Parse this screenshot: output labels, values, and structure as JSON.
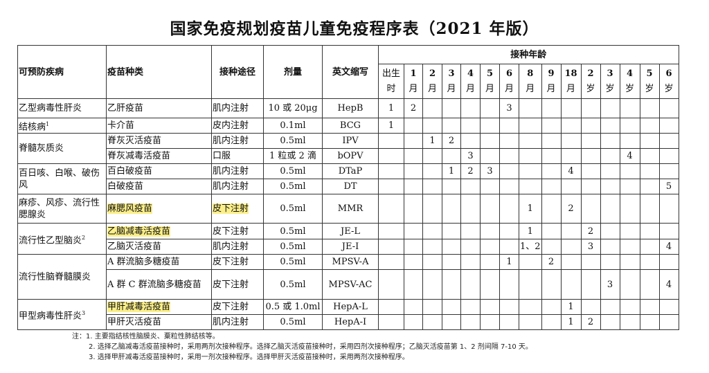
{
  "title": "国家免疫规划疫苗儿童免疫程序表（2021 年版）",
  "headers": {
    "disease": "可预防疾病",
    "vaccine": "疫苗种类",
    "route": "接种途径",
    "dose": "剂量",
    "abbr": "英文缩写",
    "age_group": "接种年龄"
  },
  "ages": [
    [
      "出生",
      "时"
    ],
    [
      "1",
      "月"
    ],
    [
      "2",
      "月"
    ],
    [
      "3",
      "月"
    ],
    [
      "4",
      "月"
    ],
    [
      "5",
      "月"
    ],
    [
      "6",
      "月"
    ],
    [
      "8",
      "月"
    ],
    [
      "9",
      "月"
    ],
    [
      "18",
      "月"
    ],
    [
      "2",
      "岁"
    ],
    [
      "3",
      "岁"
    ],
    [
      "4",
      "岁"
    ],
    [
      "5",
      "岁"
    ],
    [
      "6",
      "岁"
    ]
  ],
  "diseases": [
    {
      "name": "乙型病毒性肝炎",
      "sup": "",
      "rows": [
        {
          "vaccine": "乙肝疫苗",
          "route": "肌内注射",
          "dose": "10 或 20μg",
          "abbr": "HepB",
          "doses": {
            "0": "1",
            "1": "2",
            "6": "3"
          }
        }
      ]
    },
    {
      "name": "结核病",
      "sup": "1",
      "rows": [
        {
          "vaccine": "卡介苗",
          "route": "皮内注射",
          "dose": "0.1ml",
          "abbr": "BCG",
          "doses": {
            "0": "1"
          }
        }
      ]
    },
    {
      "name": "脊髓灰质炎",
      "sup": "",
      "rows": [
        {
          "vaccine": "脊灰灭活疫苗",
          "route": "肌内注射",
          "dose": "0.5ml",
          "abbr": "IPV",
          "doses": {
            "2": "1",
            "3": "2"
          }
        },
        {
          "vaccine": "脊灰减毒活疫苗",
          "route": "口服",
          "dose": "1 粒或 2 滴",
          "abbr": "bOPV",
          "doses": {
            "4": "3",
            "12": "4"
          }
        }
      ]
    },
    {
      "name": "百日咳、白喉、破伤风",
      "sup": "",
      "rows": [
        {
          "vaccine": "百白破疫苗",
          "route": "肌内注射",
          "dose": "0.5ml",
          "abbr": "DTaP",
          "doses": {
            "3": "1",
            "4": "2",
            "5": "3",
            "9": "4"
          }
        },
        {
          "vaccine": "白破疫苗",
          "route": "肌内注射",
          "dose": "0.5ml",
          "abbr": "DT",
          "doses": {
            "14": "5"
          }
        }
      ]
    },
    {
      "name": "麻疹、风疹、流行性腮腺炎",
      "sup": "",
      "rows": [
        {
          "vaccine": "麻腮风疫苗",
          "route": "皮下注射",
          "dose": "0.5ml",
          "abbr": "MMR",
          "hl_vaccine": true,
          "hl_route": true,
          "doses": {
            "7": "1",
            "9": "2"
          }
        }
      ]
    },
    {
      "name": "流行性乙型脑炎",
      "sup": "2",
      "rows": [
        {
          "vaccine": "乙脑减毒活疫苗",
          "route": "皮下注射",
          "dose": "0.5ml",
          "abbr": "JE-L",
          "hl_vaccine": true,
          "doses": {
            "7": "1",
            "10": "2"
          }
        },
        {
          "vaccine": "乙脑灭活疫苗",
          "route": "肌内注射",
          "dose": "0.5ml",
          "abbr": "JE-I",
          "doses": {
            "7": "1、2",
            "10": "3",
            "14": "4"
          }
        }
      ]
    },
    {
      "name": "流行性脑脊髓膜炎",
      "sup": "",
      "rows": [
        {
          "vaccine": "A 群流脑多糖疫苗",
          "route": "皮下注射",
          "dose": "0.5ml",
          "abbr": "MPSV-A",
          "doses": {
            "6": "1",
            "8": "2"
          }
        },
        {
          "vaccine": "A 群 C 群流脑多糖疫苗",
          "route": "皮下注射",
          "dose": "0.5ml",
          "abbr": "MPSV-AC",
          "doses": {
            "11": "3",
            "14": "4"
          }
        }
      ]
    },
    {
      "name": "甲型病毒性肝炎",
      "sup": "3",
      "rows": [
        {
          "vaccine": "甲肝减毒活疫苗",
          "route": "皮下注射",
          "dose": "0.5 或 1.0ml",
          "abbr": "HepA-L",
          "hl_vaccine": true,
          "doses": {
            "9": "1"
          }
        },
        {
          "vaccine": "甲肝灭活疫苗",
          "route": "肌内注射",
          "dose": "0.5ml",
          "abbr": "HepA-I",
          "doses": {
            "9": "1",
            "10": "2"
          }
        }
      ]
    }
  ],
  "notes": {
    "prefix": "注：",
    "items": [
      "1. 主要指结核性脑膜炎、粟粒性肺结核等。",
      "2. 选择乙脑减毒活疫苗接种时，采用两剂次接种程序。选择乙脑灭活疫苗接种时，采用四剂次接种程序；乙脑灭活疫苗第 1、2 剂间隔 7-10 天。",
      "3. 选择甲肝减毒活疫苗接种时，采用一剂次接种程序。选择甲肝灭活疫苗接种时，采用两剂次接种程序。"
    ]
  },
  "colors": {
    "highlight": "#fbef8a",
    "border": "#333333"
  }
}
